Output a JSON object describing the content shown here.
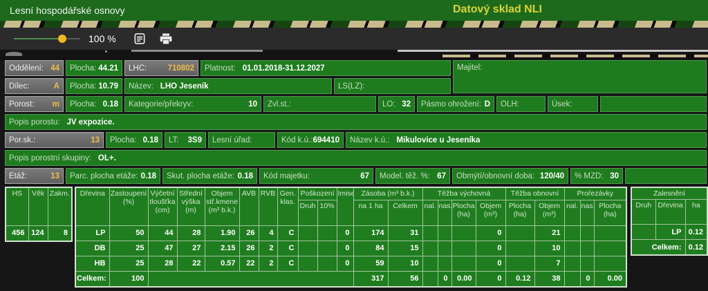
{
  "header": {
    "title": "Lesní hospodářské osnovy",
    "app_title": "Datový sklad NLI"
  },
  "toolbar": {
    "zoom_level": "100 %"
  },
  "form": {
    "oddeleni": {
      "label": "Oddělení:",
      "value": "44"
    },
    "plocha_odd": {
      "label": "Plocha:",
      "value": "44.21"
    },
    "lhc": {
      "label": "LHC:",
      "value": "710802"
    },
    "platnost": {
      "label": "Platnost:",
      "value": "01.01.2018-31.12.2027"
    },
    "majitel": {
      "label": "Majitel:",
      "value": ""
    },
    "dilec": {
      "label": "Dílec:",
      "value": "A"
    },
    "plocha_dil": {
      "label": "Plocha:",
      "value": "10.79"
    },
    "nazev": {
      "label": "Název:",
      "value": "LHO Jeseník"
    },
    "lslz": {
      "label": "LS(LZ):",
      "value": ""
    },
    "porost": {
      "label": "Porost:",
      "value": "m"
    },
    "plocha_por": {
      "label": "Plocha:",
      "value": "0.18"
    },
    "kategorie": {
      "label": "Kategorie/překryv:",
      "value": "10"
    },
    "zvlst": {
      "label": "Zvl.st.:",
      "value": ""
    },
    "lo": {
      "label": "LO:",
      "value": "32"
    },
    "pasmo": {
      "label": "Pásmo ohrožení:",
      "value": "D"
    },
    "olh": {
      "label": "OLH:",
      "value": ""
    },
    "usek": {
      "label": "Úsek:",
      "value": ""
    },
    "popis_porostu": {
      "label": "Popis porostu:",
      "value": "JV expozice."
    },
    "porsk": {
      "label": "Por.sk.:",
      "value": "13"
    },
    "plocha_ps": {
      "label": "Plocha:",
      "value": "0.18"
    },
    "lt": {
      "label": "LT:",
      "value": "3S9"
    },
    "lesni_urad": {
      "label": "Lesní úřad:",
      "value": ""
    },
    "kod_ku": {
      "label": "Kód k.ú.:",
      "value": "694410"
    },
    "nazev_ku": {
      "label": "Název k.ú.:",
      "value": "Mikulovice u Jeseníka"
    },
    "popis_skupiny": {
      "label": "Popis porostní skupiny:",
      "value": "OL+."
    },
    "etaz": {
      "label": "Etáž:",
      "value": "13"
    },
    "parc_plocha": {
      "label": "Parc. plocha etáže:",
      "value": "0.18"
    },
    "skut_plocha": {
      "label": "Skut. plocha etáže:",
      "value": "0.18"
    },
    "kod_majetku": {
      "label": "Kód majetku:",
      "value": "67"
    },
    "model_tez": {
      "label": "Model. těž. %:",
      "value": "67"
    },
    "obmyti": {
      "label": "Obmýtí/obnovní doba:",
      "value": "120/40"
    },
    "mzd": {
      "label": "% MZD:",
      "value": "30"
    }
  },
  "tables": {
    "stand": {
      "headers": [
        "HS",
        "Věk",
        "Zakm."
      ],
      "row": [
        "456",
        "124",
        "8"
      ]
    },
    "species": {
      "group_headers": [
        {
          "t": "Dřevina",
          "cs": 1,
          "rs": 2
        },
        {
          "t": "Zastoupení (%)",
          "cs": 1,
          "rs": 2
        },
        {
          "t": "Výčetní tloušťka (cm)",
          "cs": 1,
          "rs": 2
        },
        {
          "t": "Střední výška (m)",
          "cs": 1,
          "rs": 2
        },
        {
          "t": "Objem stř.kmene (m³ b.k.)",
          "cs": 1,
          "rs": 2
        },
        {
          "t": "AVB",
          "cs": 1,
          "rs": 2
        },
        {
          "t": "RVB",
          "cs": 1,
          "rs": 2
        },
        {
          "t": "Gen. klas.",
          "cs": 1,
          "rs": 2
        },
        {
          "t": "Poškození",
          "cs": 2,
          "rs": 1
        },
        {
          "t": "Imise",
          "cs": 1,
          "rs": 2
        },
        {
          "t": "Zásoba (m³ b.k.)",
          "cs": 2,
          "rs": 1
        },
        {
          "t": "Těžba výchovná",
          "cs": 4,
          "rs": 1
        },
        {
          "t": "Těžba obnovní",
          "cs": 2,
          "rs": 1
        },
        {
          "t": "Prořezávky",
          "cs": 3,
          "rs": 1
        }
      ],
      "sub_headers": [
        "Druh",
        "10%",
        "na 1 ha",
        "Celkem",
        "nal.",
        "nas.",
        "Plocha (ha)",
        "Objem (m³)",
        "Plocha (ha)",
        "Objem (m³)",
        "nal.",
        "nas.",
        "Plocha (ha)"
      ],
      "rows": [
        [
          "LP",
          "50",
          "44",
          "28",
          "1.90",
          "26",
          "4",
          "C",
          "",
          "",
          "0",
          "174",
          "31",
          "",
          "",
          "",
          "0",
          "",
          "21",
          "",
          "",
          ""
        ],
        [
          "DB",
          "25",
          "47",
          "27",
          "2.15",
          "26",
          "2",
          "C",
          "",
          "",
          "0",
          "84",
          "15",
          "",
          "",
          "",
          "0",
          "",
          "10",
          "",
          "",
          ""
        ],
        [
          "HB",
          "25",
          "28",
          "22",
          "0.57",
          "22",
          "2",
          "C",
          "",
          "",
          "0",
          "59",
          "10",
          "",
          "",
          "",
          "0",
          "",
          "7",
          "",
          "",
          ""
        ]
      ],
      "total": {
        "label": "Celkem:",
        "zastoupeni": "100",
        "values": [
          "317",
          "56",
          "",
          "0",
          "0.00",
          "0",
          "0.12",
          "38",
          "",
          "0",
          "0.00"
        ]
      }
    },
    "zalesneni": {
      "title": "Zalesnění",
      "headers": [
        "Druh",
        "Dřevina",
        "ha"
      ],
      "rows": [
        [
          "",
          "LP",
          "0.12"
        ]
      ],
      "total_label": "Celkem:",
      "total_value": "0.12"
    }
  }
}
